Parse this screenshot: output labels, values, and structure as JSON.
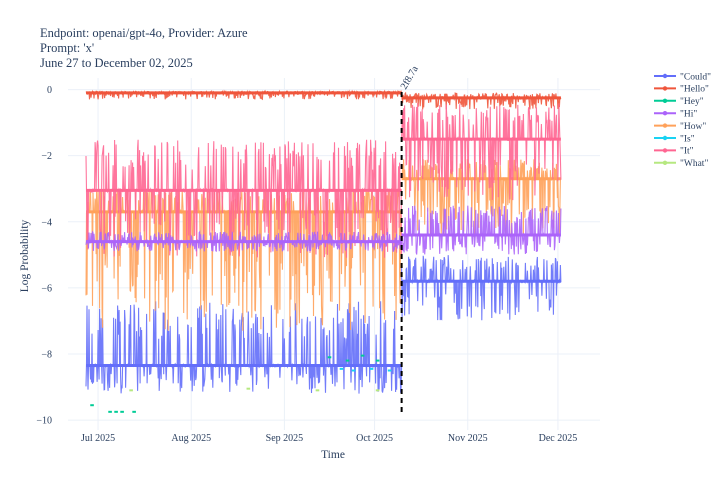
{
  "chart_data": {
    "type": "line",
    "title_lines": [
      "Endpoint: openai/gpt-4o, Provider: Azure",
      "Prompt: 'x'",
      "June 27 to December 02, 2025"
    ],
    "xlabel": "Time",
    "ylabel": "Log Probability",
    "xlim": [
      "2025-06-21",
      "2025-12-15"
    ],
    "ylim": [
      -10.3,
      0.35
    ],
    "x_ticks": [
      {
        "date": "2025-07-01",
        "label": "Jul 2025"
      },
      {
        "date": "2025-08-01",
        "label": "Aug 2025"
      },
      {
        "date": "2025-09-01",
        "label": "Sep 2025"
      },
      {
        "date": "2025-10-01",
        "label": "Oct 2025"
      },
      {
        "date": "2025-11-01",
        "label": "Nov 2025"
      },
      {
        "date": "2025-12-01",
        "label": "Dec 2025"
      }
    ],
    "y_ticks": [
      0,
      -2,
      -4,
      -6,
      -8,
      -10
    ],
    "y_tick_labels": [
      "0",
      "−2",
      "−4",
      "−6",
      "−8",
      "−10"
    ],
    "grid": true,
    "legend_position": "right",
    "annotation": {
      "date": "2025-10-10",
      "label": "2f8.7a"
    },
    "series": [
      {
        "name": "\"Could\"",
        "color": "#636efa",
        "segments": [
          {
            "from": "2025-06-27",
            "to": "2025-10-10",
            "base": -8.35,
            "spikes_to": -6.4,
            "dips_to": -9.2
          },
          {
            "from": "2025-10-10",
            "to": "2025-12-02",
            "base": -5.8,
            "spikes_to": -5.0,
            "dips_to": -7.0
          }
        ]
      },
      {
        "name": "\"Hello\"",
        "color": "#ef553b",
        "segments": [
          {
            "from": "2025-06-27",
            "to": "2025-10-10",
            "base": -0.1,
            "spikes_to": -0.05,
            "dips_to": -0.3
          },
          {
            "from": "2025-10-10",
            "to": "2025-12-02",
            "base": -0.25,
            "spikes_to": -0.1,
            "dips_to": -0.6
          }
        ]
      },
      {
        "name": "\"Hey\"",
        "color": "#00cc96",
        "points": [
          {
            "x": "2025-06-29",
            "y": -9.55
          },
          {
            "x": "2025-07-05",
            "y": -9.75
          },
          {
            "x": "2025-07-07",
            "y": -9.75
          },
          {
            "x": "2025-07-09",
            "y": -9.75
          },
          {
            "x": "2025-07-13",
            "y": -9.75
          },
          {
            "x": "2025-09-16",
            "y": -8.1
          },
          {
            "x": "2025-09-22",
            "y": -8.2
          },
          {
            "x": "2025-09-27",
            "y": -8.05
          },
          {
            "x": "2025-10-02",
            "y": -8.2
          }
        ]
      },
      {
        "name": "\"Hi\"",
        "color": "#ab63fa",
        "segments": [
          {
            "from": "2025-06-27",
            "to": "2025-10-10",
            "base": -4.6,
            "spikes_to": -4.3,
            "dips_to": -4.9
          },
          {
            "from": "2025-10-10",
            "to": "2025-12-02",
            "base": -4.4,
            "spikes_to": -3.5,
            "dips_to": -5.0
          }
        ]
      },
      {
        "name": "\"How\"",
        "color": "#ffa15a",
        "segments": [
          {
            "from": "2025-06-27",
            "to": "2025-10-10",
            "base": -3.7,
            "spikes_to": -3.0,
            "dips_to": -7.3
          },
          {
            "from": "2025-10-10",
            "to": "2025-12-02",
            "base": -2.7,
            "spikes_to": -2.1,
            "dips_to": -4.5
          }
        ]
      },
      {
        "name": "\"Is\"",
        "color": "#19d3f3",
        "points": [
          {
            "x": "2025-09-20",
            "y": -8.45
          },
          {
            "x": "2025-09-24",
            "y": -8.5
          },
          {
            "x": "2025-09-30",
            "y": -8.45
          },
          {
            "x": "2025-10-06",
            "y": -8.5
          }
        ]
      },
      {
        "name": "\"It\"",
        "color": "#ff6692",
        "segments": [
          {
            "from": "2025-06-27",
            "to": "2025-10-10",
            "base": -3.05,
            "spikes_to": -1.5,
            "dips_to": -5.1
          },
          {
            "from": "2025-10-10",
            "to": "2025-12-02",
            "base": -1.5,
            "spikes_to": -0.4,
            "dips_to": -3.4
          }
        ]
      },
      {
        "name": "\"What\"",
        "color": "#b6e880",
        "points": [
          {
            "x": "2025-07-12",
            "y": -9.1
          },
          {
            "x": "2025-08-20",
            "y": -9.05
          },
          {
            "x": "2025-09-12",
            "y": -9.1
          },
          {
            "x": "2025-10-02",
            "y": -9.1
          }
        ]
      }
    ]
  }
}
